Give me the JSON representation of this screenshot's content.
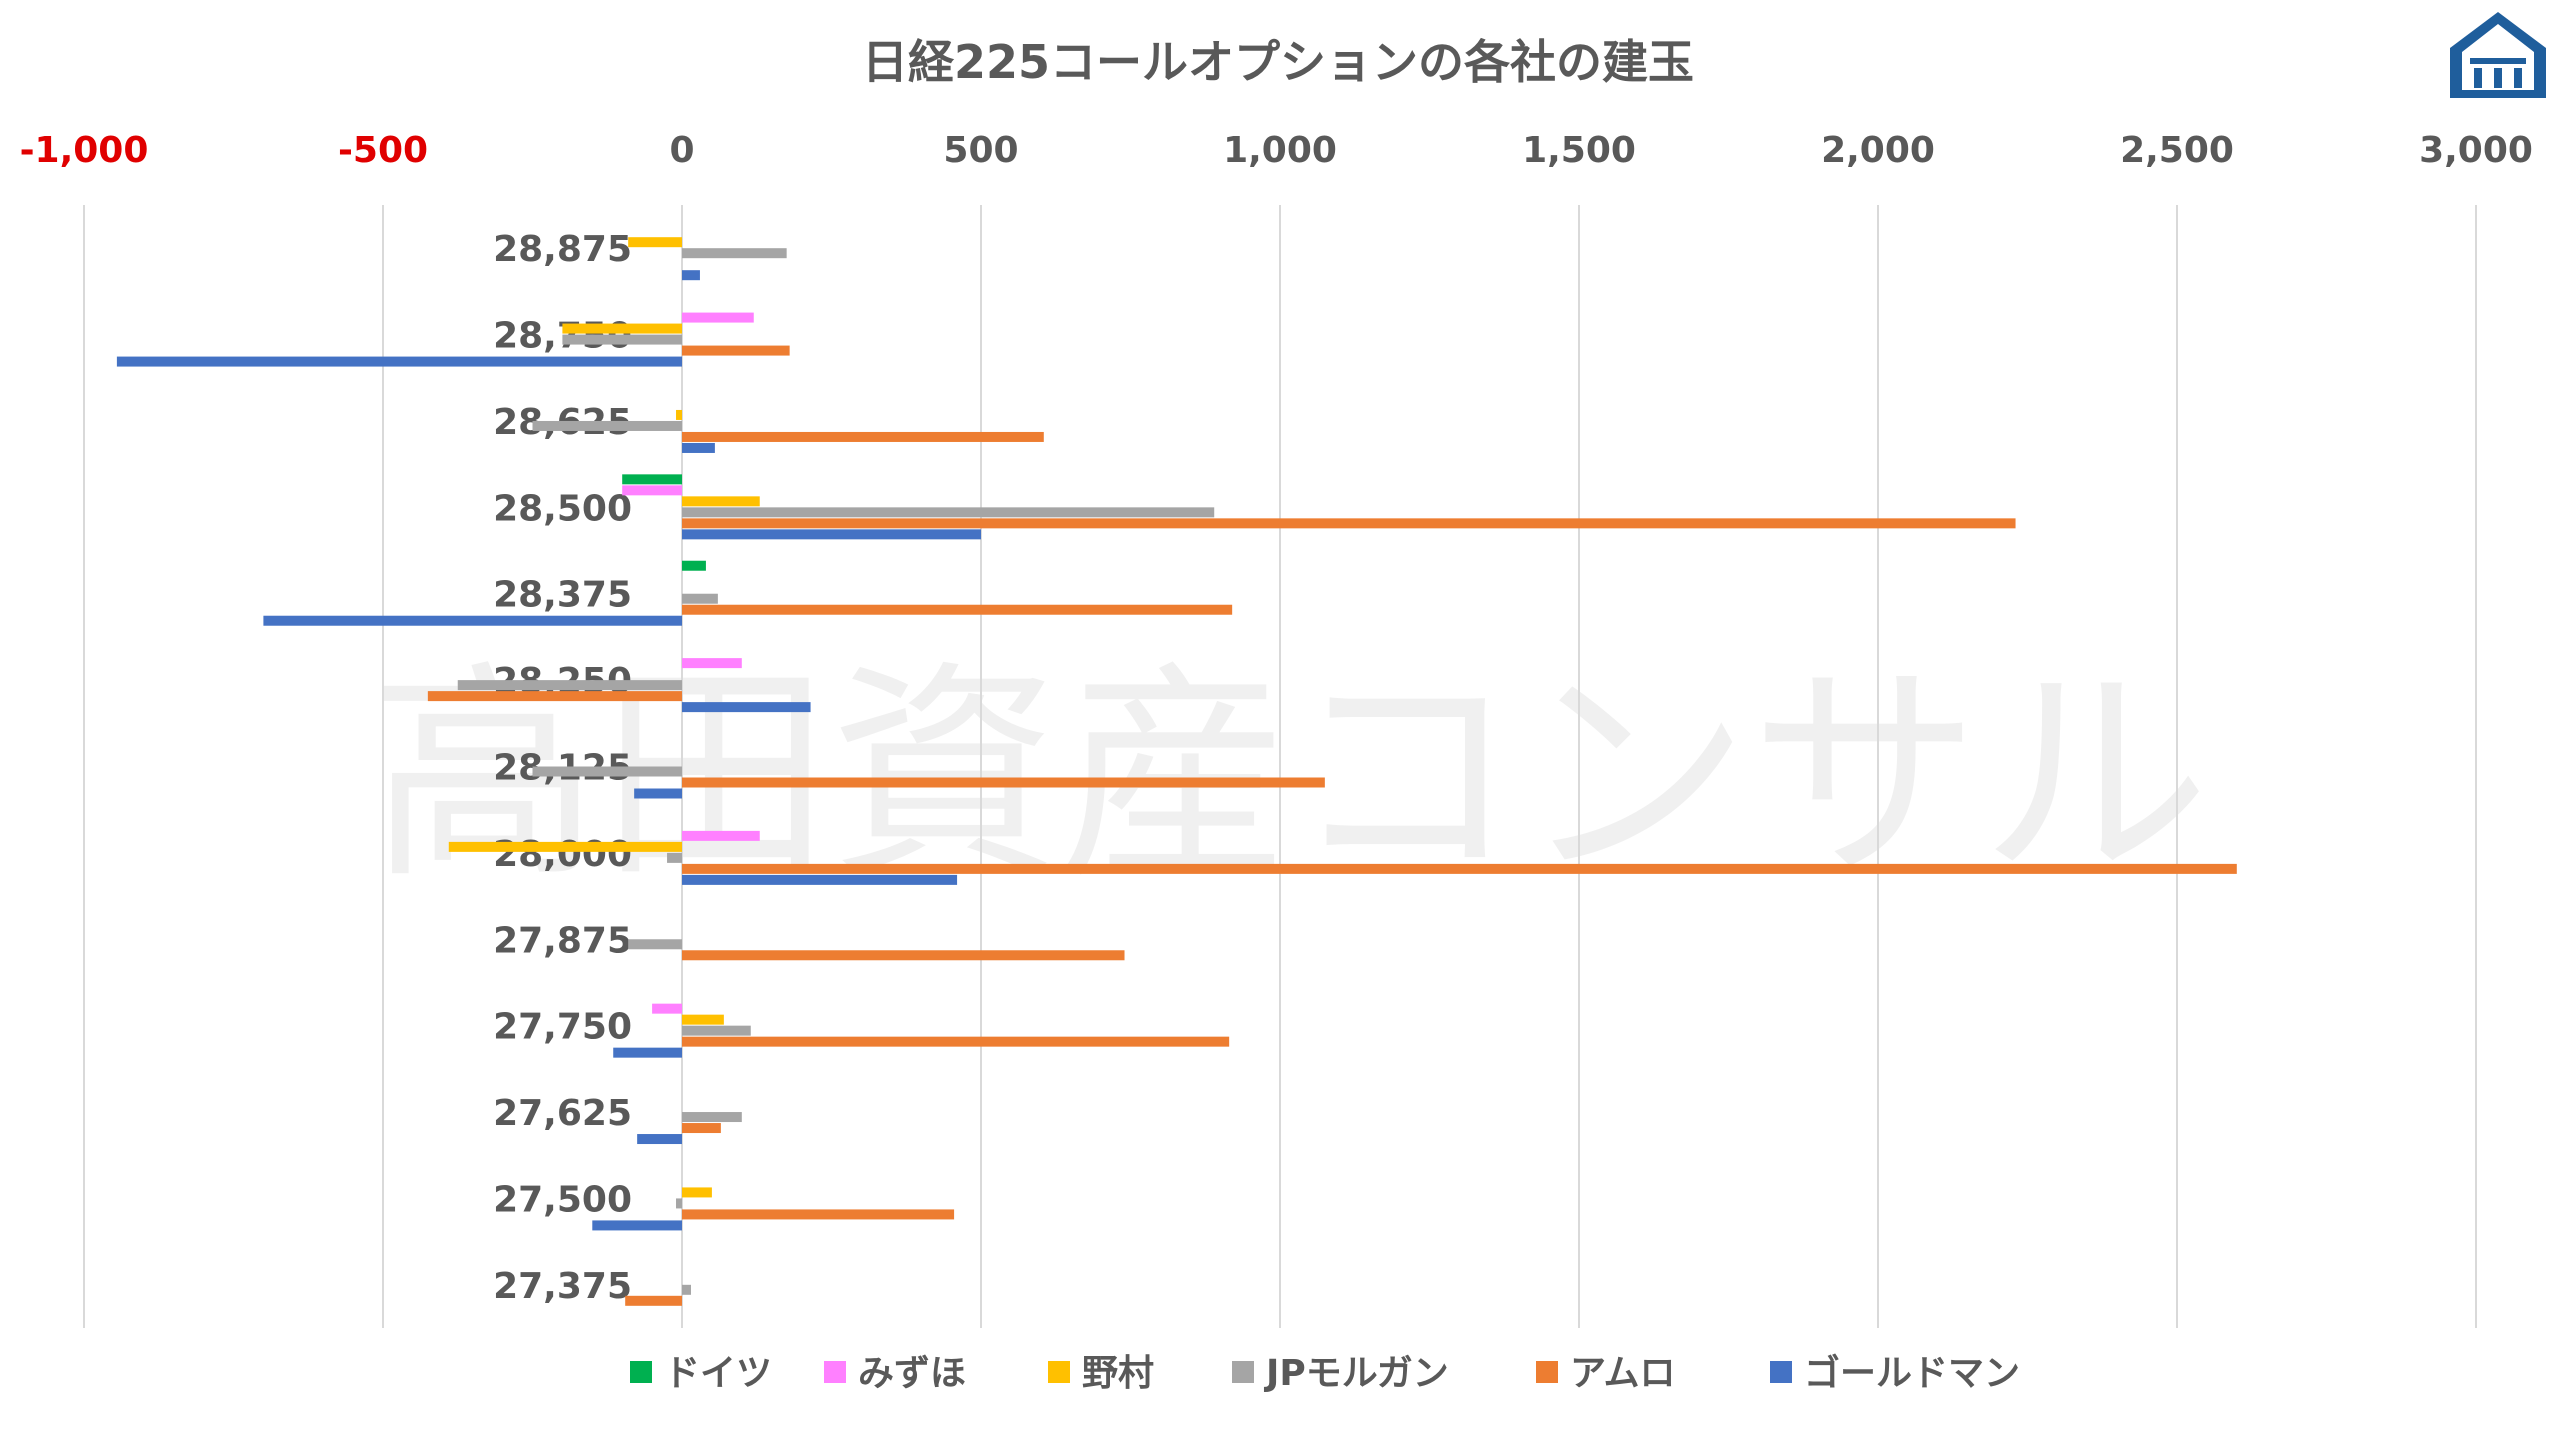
{
  "watermark": "高田資産コンサル",
  "logo_icon": "house-logo-icon",
  "chart_data": {
    "type": "bar",
    "orientation": "horizontal",
    "title": "日経225コールオプションの各社の建玉",
    "xlabel": "",
    "ylabel": "",
    "xlim": [
      -1000,
      3000
    ],
    "xticks": [
      -1000,
      -500,
      0,
      500,
      1000,
      1500,
      2000,
      2500,
      3000
    ],
    "xtick_labels": [
      "-1,000",
      "-500",
      "0",
      "500",
      "1,000",
      "1,500",
      "2,000",
      "2,500",
      "3,000"
    ],
    "negative_tick_color": "#e00000",
    "grid": true,
    "legend_position": "bottom",
    "categories": [
      "28,875",
      "28,750",
      "28,625",
      "28,500",
      "28,375",
      "28,250",
      "28,125",
      "28,000",
      "27,875",
      "27,750",
      "27,625",
      "27,500",
      "27,375"
    ],
    "series": [
      {
        "name": "ドイツ",
        "color": "#00b050",
        "values": [
          0,
          0,
          0,
          -100,
          40,
          0,
          0,
          0,
          0,
          0,
          0,
          0,
          0
        ]
      },
      {
        "name": "みずほ",
        "color": "#ff80ff",
        "values": [
          0,
          120,
          0,
          -100,
          0,
          100,
          0,
          130,
          0,
          -50,
          0,
          0,
          0
        ]
      },
      {
        "name": "野村",
        "color": "#ffc000",
        "values": [
          -90,
          -200,
          -10,
          130,
          0,
          0,
          0,
          -390,
          0,
          70,
          0,
          50,
          0
        ]
      },
      {
        "name": "JPモルガン",
        "color": "#a5a5a5",
        "values": [
          175,
          -200,
          -250,
          890,
          60,
          -375,
          -250,
          -25,
          -90,
          115,
          100,
          -10,
          15
        ]
      },
      {
        "name": "アムロ",
        "color": "#ed7d31",
        "values": [
          0,
          180,
          605,
          2230,
          920,
          -425,
          1075,
          2600,
          740,
          915,
          65,
          455,
          -95
        ]
      },
      {
        "name": "ゴールドマン",
        "color": "#4472c4",
        "values": [
          30,
          -945,
          55,
          500,
          -700,
          215,
          -80,
          460,
          0,
          -115,
          -75,
          -150,
          0
        ]
      }
    ]
  }
}
